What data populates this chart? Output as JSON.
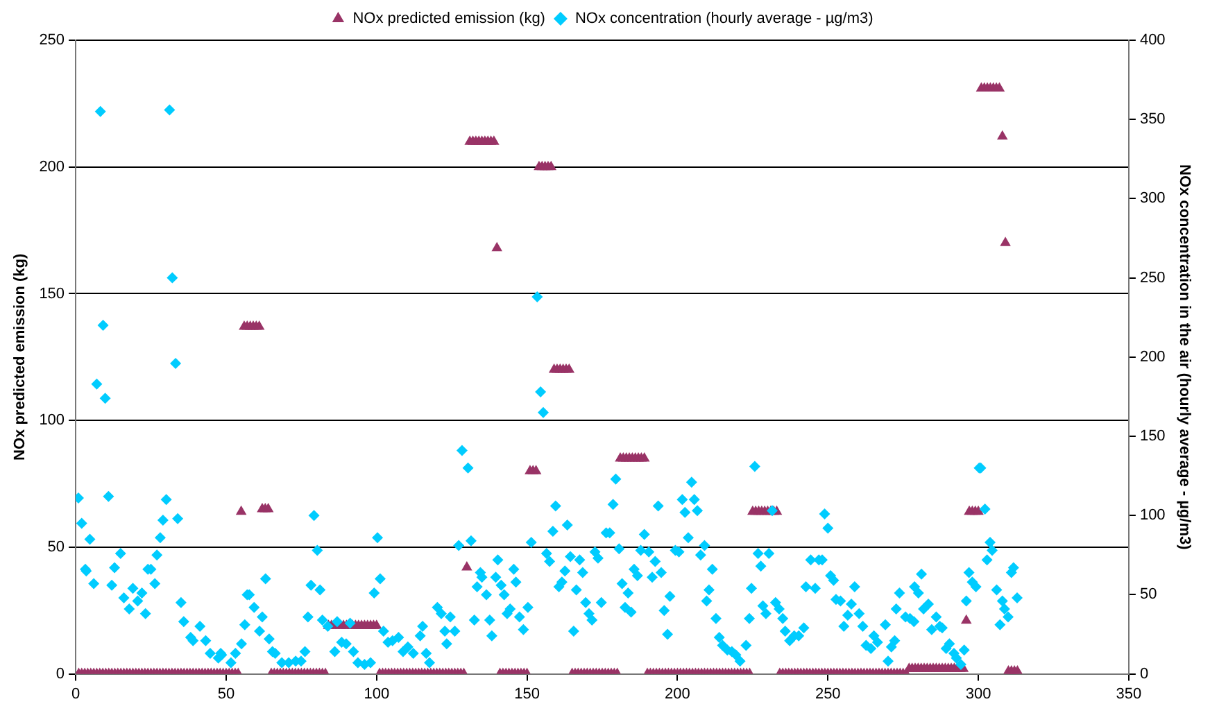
{
  "chart_data": {
    "type": "scatter",
    "xlim": [
      0,
      350
    ],
    "xticks": [
      0,
      50,
      100,
      150,
      200,
      250,
      300,
      350
    ],
    "ylim": [
      0,
      250
    ],
    "yticks": [
      0,
      50,
      100,
      150,
      200,
      250
    ],
    "y2lim": [
      0,
      400
    ],
    "y2ticks": [
      0,
      50,
      100,
      150,
      200,
      250,
      300,
      350,
      400
    ],
    "ylabel": "NOx predicted emission (kg)",
    "y2label": "NOx concentration in the air (hourly average - µg/m3)",
    "grid": "y",
    "legend": "top",
    "series": [
      {
        "name": "NOx predicted emission (kg)",
        "color": "#993366",
        "marker": "triangle",
        "axis": "y",
        "x": [
          1,
          2,
          3,
          4,
          5,
          6,
          7,
          8,
          9,
          10,
          11,
          12,
          13,
          14,
          15,
          16,
          17,
          18,
          19,
          20,
          21,
          22,
          23,
          24,
          25,
          26,
          27,
          28,
          29,
          30,
          31,
          32,
          33,
          34,
          35,
          36,
          37,
          38,
          39,
          40,
          41,
          42,
          43,
          44,
          45,
          46,
          47,
          48,
          49,
          50,
          51,
          52,
          53,
          54,
          55,
          56,
          57,
          58,
          59,
          60,
          61,
          62,
          63,
          64,
          65,
          66,
          67,
          68,
          69,
          70,
          71,
          72,
          73,
          74,
          75,
          76,
          77,
          78,
          79,
          80,
          81,
          82,
          83,
          84,
          85,
          86,
          87,
          88,
          89,
          90,
          91,
          92,
          93,
          94,
          95,
          96,
          97,
          98,
          99,
          100,
          101,
          102,
          103,
          104,
          105,
          106,
          107,
          108,
          109,
          110,
          111,
          112,
          113,
          114,
          115,
          116,
          117,
          118,
          119,
          120,
          121,
          122,
          123,
          124,
          125,
          126,
          127,
          128,
          129,
          130,
          131,
          132,
          133,
          134,
          135,
          136,
          137,
          138,
          139,
          140,
          141,
          142,
          143,
          144,
          145,
          146,
          147,
          148,
          149,
          150,
          151,
          152,
          153,
          154,
          155,
          156,
          157,
          158,
          159,
          160,
          161,
          162,
          163,
          164,
          165,
          166,
          167,
          168,
          169,
          170,
          171,
          172,
          173,
          174,
          175,
          176,
          177,
          178,
          179,
          180,
          181,
          182,
          183,
          184,
          185,
          186,
          187,
          188,
          189,
          190,
          191,
          192,
          193,
          194,
          195,
          196,
          197,
          198,
          199,
          200,
          201,
          202,
          203,
          204,
          205,
          206,
          207,
          208,
          209,
          210,
          211,
          212,
          213,
          214,
          215,
          216,
          217,
          218,
          219,
          220,
          221,
          222,
          223,
          224,
          225,
          226,
          227,
          228,
          229,
          230,
          231,
          232,
          233,
          234,
          235,
          236,
          237,
          238,
          239,
          240,
          241,
          242,
          243,
          244,
          245,
          246,
          247,
          248,
          249,
          250,
          251,
          252,
          253,
          254,
          255,
          256,
          257,
          258,
          259,
          260,
          261,
          262,
          263,
          264,
          265,
          266,
          267,
          268,
          269,
          270,
          271,
          272,
          273,
          274,
          275,
          276,
          277,
          278,
          279,
          280,
          281,
          282,
          283,
          284,
          285,
          286,
          287,
          288,
          289,
          290,
          291,
          292,
          293,
          294,
          295,
          296,
          297,
          298,
          299,
          300,
          301,
          302,
          303,
          304,
          305,
          306,
          307,
          308,
          309,
          310,
          311,
          312,
          313
        ],
        "values": [
          0,
          0,
          0,
          0,
          0,
          0,
          0,
          0,
          0,
          0,
          0,
          0,
          0,
          0,
          0,
          0,
          0,
          0,
          0,
          0,
          0,
          0,
          0,
          0,
          0,
          0,
          0,
          0,
          0,
          0,
          0,
          0,
          0,
          0,
          0,
          0,
          0,
          0,
          0,
          0,
          0,
          0,
          0,
          0,
          0,
          0,
          0,
          0,
          0,
          0,
          0,
          0,
          0,
          0,
          64,
          137,
          137,
          137,
          137,
          137,
          137,
          65,
          65,
          65,
          0,
          0,
          0,
          0,
          0,
          0,
          0,
          0,
          0,
          0,
          0,
          0,
          0,
          0,
          0,
          0,
          0,
          0,
          0,
          19,
          19,
          19,
          null,
          19,
          19,
          19,
          null,
          19,
          19,
          19,
          19,
          19,
          19,
          19,
          19,
          19,
          0,
          0,
          0,
          0,
          0,
          0,
          0,
          0,
          0,
          0,
          0,
          0,
          0,
          0,
          0,
          0,
          0,
          0,
          0,
          0,
          0,
          0,
          0,
          0,
          0,
          0,
          0,
          0,
          0,
          42,
          210,
          210,
          210,
          210,
          210,
          210,
          210,
          210,
          210,
          168,
          0,
          0,
          0,
          0,
          0,
          0,
          0,
          0,
          0,
          0,
          80,
          80,
          80,
          200,
          200,
          200,
          200,
          200,
          120,
          120,
          120,
          120,
          120,
          120,
          0,
          0,
          0,
          0,
          0,
          0,
          0,
          0,
          0,
          0,
          0,
          0,
          0,
          0,
          0,
          0,
          85,
          85,
          85,
          85,
          85,
          85,
          85,
          85,
          85,
          0,
          0,
          0,
          0,
          0,
          0,
          0,
          0,
          0,
          0,
          0,
          0,
          0,
          0,
          0,
          0,
          0,
          0,
          0,
          0,
          0,
          0,
          0,
          0,
          0,
          0,
          0,
          0,
          0,
          0,
          0,
          0,
          0,
          0,
          0,
          64,
          64,
          64,
          64,
          64,
          64,
          64,
          64,
          64,
          0,
          0,
          0,
          0,
          0,
          0,
          0,
          0,
          0,
          0,
          0,
          0,
          0,
          0,
          0,
          0,
          0,
          0,
          0,
          0,
          0,
          0,
          0,
          0,
          0,
          0,
          0,
          0,
          0,
          0,
          0,
          0,
          0,
          0,
          0,
          0,
          0,
          0,
          0,
          0,
          0,
          0,
          0,
          2,
          2,
          2,
          2,
          2,
          2,
          2,
          2,
          2,
          2,
          2,
          2,
          2,
          2,
          2,
          2,
          2,
          2,
          2,
          21,
          64,
          64,
          64,
          64,
          231,
          231,
          231,
          231,
          231,
          231,
          231,
          212,
          170,
          1,
          1,
          1,
          1
        ]
      },
      {
        "name": "NOx concentration (hourly average - µg/m3)",
        "color": "#00ccff",
        "marker": "diamond",
        "axis": "y2",
        "x": [
          0.9,
          2,
          3.2,
          3.5,
          4.7,
          6,
          7,
          8.2,
          9.1,
          9.8,
          10.9,
          12,
          12.9,
          14.9,
          16,
          17.8,
          19,
          20.6,
          22,
          23.2,
          24,
          25,
          26.3,
          27,
          28.1,
          29,
          30.1,
          31.2,
          32.1,
          33.2,
          33.9,
          35,
          35.9,
          38.2,
          39,
          41.3,
          43.2,
          44.7,
          47.4,
          48.2,
          48.5,
          51.6,
          53.1,
          55.1,
          56.2,
          57,
          57.7,
          59.3,
          61.1,
          62,
          63.1,
          64.3,
          65.4,
          66.3,
          68.5,
          70.8,
          73.1,
          74.9,
          76.2,
          77.2,
          78.2,
          79.2,
          80.3,
          81.2,
          82,
          83.8,
          86.1,
          86.9,
          88.4,
          89.9,
          91.2,
          92.3,
          93.8,
          96,
          98,
          99.2,
          100.3,
          101.2,
          102.3,
          103.8,
          105.3,
          107.3,
          108.8,
          110.4,
          112.2,
          114.5,
          115.3,
          116.5,
          117.6,
          120.2,
          121.5,
          122.7,
          123.3,
          124.5,
          126,
          127.3,
          128.4,
          130.4,
          131.4,
          132.5,
          133.4,
          134.5,
          135,
          136.5,
          137.6,
          138.3,
          139.6,
          140.3,
          141.4,
          142.4,
          143.4,
          144.4,
          145.6,
          146.3,
          147.5,
          148.8,
          150.3,
          151.4,
          153.4,
          154.5,
          155.4,
          156.5,
          157.5,
          158.6,
          159.5,
          160.6,
          161.6,
          162.6,
          163.4,
          164.4,
          165.5,
          166.4,
          167.5,
          168.5,
          169.5,
          170.6,
          171.6,
          172.6,
          173.6,
          174.7,
          176.3,
          177.5,
          178.6,
          179.5,
          180.6,
          181.6,
          182.6,
          183.6,
          184.6,
          185.6,
          186.7,
          187.8,
          189,
          190.5,
          191.6,
          192.6,
          193.6,
          194.6,
          195.6,
          196.7,
          197.5,
          199.3,
          200.5,
          201.6,
          202.5,
          203.6,
          204.7,
          205.6,
          206.6,
          207.7,
          209,
          209.7,
          210.5,
          211.6,
          212.8,
          213.9,
          215,
          216.6,
          218.1,
          219.4,
          220.8,
          222.8,
          223.9,
          224.6,
          225.7,
          226.8,
          227.7,
          228.4,
          229.4,
          230.4,
          231.5,
          232.6,
          233.8,
          235,
          235.8,
          237.3,
          238.8,
          240.3,
          242,
          242.7,
          244.3,
          245.8,
          247,
          248.1,
          248.9,
          250,
          250.9,
          251.9,
          252.7,
          254.2,
          255.3,
          256.6,
          257.8,
          258.9,
          260.4,
          261.6,
          262.7,
          264.3,
          265.3,
          266.5,
          269.1,
          270,
          271.1,
          272.2,
          272.7,
          273.8,
          275.8,
          277.3,
          278.6,
          278.8,
          280.1,
          281.1,
          281.8,
          283.4,
          284.5,
          286,
          287.2,
          288,
          289.3,
          290.4,
          291.9,
          292.7,
          294.2,
          295.3,
          296,
          296.9,
          298,
          299.2,
          300.3,
          300.8,
          302.2,
          302.9,
          303.9,
          304.6,
          306.1,
          307.2,
          308,
          308.7,
          309.9,
          311,
          311.7,
          312.9
        ],
        "values": [
          111,
          95,
          66,
          65,
          85,
          57,
          183,
          355,
          220,
          174,
          112,
          56,
          67,
          76,
          48,
          41,
          54,
          46,
          51,
          38,
          66,
          66,
          57,
          75,
          86,
          97,
          110,
          356,
          250,
          196,
          98,
          45,
          33,
          23,
          21,
          30,
          21,
          13,
          10,
          13,
          12,
          7,
          13,
          19,
          31,
          50,
          50,
          42,
          27,
          36,
          60,
          22,
          14,
          13,
          7,
          7,
          8,
          8,
          14,
          36,
          56,
          100,
          78,
          53,
          34,
          30,
          14,
          33,
          20,
          19,
          32,
          14,
          7,
          6,
          7,
          51,
          86,
          60,
          27,
          20,
          21,
          23,
          14,
          17,
          13,
          24,
          30,
          13,
          7,
          42,
          38,
          27,
          19,
          36,
          27,
          81,
          141,
          130,
          84,
          34,
          55,
          64,
          61,
          50,
          34,
          24,
          61,
          72,
          56,
          50,
          38,
          41,
          66,
          58,
          36,
          28,
          42,
          83,
          238,
          178,
          165,
          76,
          71,
          90,
          106,
          55,
          58,
          65,
          94,
          74,
          27,
          53,
          72,
          64,
          45,
          38,
          34,
          77,
          73,
          45,
          89,
          89,
          107,
          123,
          79,
          57,
          42,
          51,
          39,
          66,
          62,
          78,
          88,
          77,
          61,
          71,
          106,
          64,
          40,
          25,
          49,
          78,
          77,
          110,
          102,
          86,
          121,
          110,
          103,
          75,
          81,
          46,
          53,
          66,
          35,
          23,
          18,
          15,
          14,
          12,
          8,
          18,
          35,
          54,
          131,
          76,
          68,
          43,
          38,
          76,
          103,
          45,
          41,
          35,
          27,
          21,
          24,
          24,
          29,
          55,
          72,
          54,
          72,
          72,
          101,
          92,
          62,
          59,
          47,
          46,
          30,
          37,
          44,
          55,
          38,
          30,
          18,
          16,
          24,
          20,
          31,
          8,
          17,
          21,
          41,
          51,
          36,
          35,
          33,
          55,
          51,
          63,
          41,
          44,
          28,
          36,
          30,
          29,
          16,
          19,
          13,
          10,
          6,
          15,
          46,
          64,
          58,
          55,
          130,
          130,
          104,
          72,
          83,
          78,
          53,
          31,
          46,
          41,
          36,
          64,
          67,
          48
        ]
      }
    ]
  }
}
